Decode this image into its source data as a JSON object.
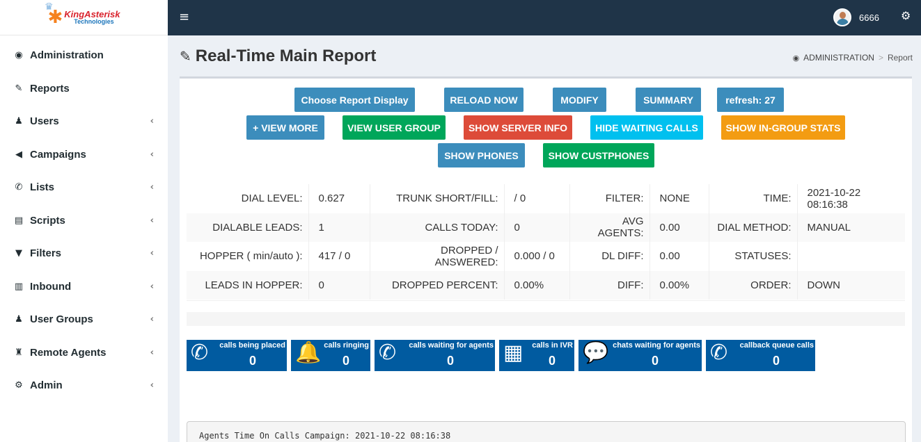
{
  "logo": {
    "name": "KingAsterisk",
    "sub": "Technologies"
  },
  "sidebar": {
    "items": [
      {
        "label": "Administration",
        "icon": "dashboard-icon",
        "glyph": "◉",
        "chevron": false
      },
      {
        "label": "Reports",
        "icon": "edit-icon",
        "glyph": "✎",
        "chevron": false
      },
      {
        "label": "Users",
        "icon": "user-icon",
        "glyph": "♟",
        "chevron": true
      },
      {
        "label": "Campaigns",
        "icon": "bullhorn-icon",
        "glyph": "◀",
        "chevron": true
      },
      {
        "label": "Lists",
        "icon": "phone-icon",
        "glyph": "✆",
        "chevron": true
      },
      {
        "label": "Scripts",
        "icon": "file-icon",
        "glyph": "▤",
        "chevron": true
      },
      {
        "label": "Filters",
        "icon": "filter-icon",
        "glyph": "▼",
        "chevron": true
      },
      {
        "label": "Inbound",
        "icon": "bar-chart-icon",
        "glyph": "▥",
        "chevron": true
      },
      {
        "label": "User Groups",
        "icon": "users-icon",
        "glyph": "♟",
        "chevron": true
      },
      {
        "label": "Remote Agents",
        "icon": "user-secret-icon",
        "glyph": "♜",
        "chevron": true
      },
      {
        "label": "Admin",
        "icon": "gear-icon",
        "glyph": "⚙",
        "chevron": true
      }
    ],
    "chevron_glyph": "‹"
  },
  "topbar": {
    "menu_glyph": "≡",
    "username": "6666",
    "gears_glyph": "⚙"
  },
  "page": {
    "title_icon": "✎",
    "title": "Real-Time Main Report",
    "breadcrumb": {
      "icon": "◉",
      "root": "ADMINISTRATION",
      "sep": ">",
      "current": "Report"
    }
  },
  "buttons": {
    "choose_report": "Choose Report Display",
    "reload": "RELOAD NOW",
    "modify": "MODIFY",
    "summary": "SUMMARY",
    "refresh": "refresh: 27",
    "view_more": "+ VIEW MORE",
    "view_user_group": "VIEW USER GROUP",
    "show_server_info": "SHOW SERVER INFO",
    "hide_waiting_calls": "HIDE WAITING CALLS",
    "show_ingroup_stats": "SHOW IN-GROUP STATS",
    "show_phones": "SHOW PHONES",
    "show_custphones": "SHOW CUSTPHONES"
  },
  "stats": {
    "rows": [
      [
        [
          "DIAL LEVEL:",
          "0.627"
        ],
        [
          "TRUNK SHORT/FILL:",
          "/ 0"
        ],
        [
          "FILTER:",
          "NONE"
        ],
        [
          "TIME:",
          "2021-10-22 08:16:38"
        ]
      ],
      [
        [
          "DIALABLE LEADS:",
          "1"
        ],
        [
          "CALLS TODAY:",
          "0"
        ],
        [
          "AVG AGENTS:",
          "0.00"
        ],
        [
          "DIAL METHOD:",
          "MANUAL"
        ]
      ],
      [
        [
          "HOPPER ( min/auto ):",
          "417 / 0"
        ],
        [
          "DROPPED / ANSWERED:",
          "0.000 / 0"
        ],
        [
          "DL DIFF:",
          "0.00"
        ],
        [
          "STATUSES:",
          ""
        ]
      ],
      [
        [
          "LEADS IN HOPPER:",
          "0"
        ],
        [
          "DROPPED PERCENT:",
          "0.00%"
        ],
        [
          "DIFF:",
          "0.00%"
        ],
        [
          "ORDER:",
          "DOWN"
        ]
      ]
    ]
  },
  "tiles": [
    {
      "label": "calls being placed",
      "value": "0",
      "glyph": "✆"
    },
    {
      "label": "calls ringing",
      "value": "0",
      "glyph": "🔔"
    },
    {
      "label": "calls waiting for agents",
      "value": "0",
      "glyph": "✆"
    },
    {
      "label": "calls in IVR",
      "value": "0",
      "glyph": "▦"
    },
    {
      "label": "chats waiting for agents",
      "value": "0",
      "glyph": "💬"
    },
    {
      "label": "callback queue calls",
      "value": "0",
      "glyph": "✆"
    }
  ],
  "agents_panel": {
    "text": "Agents Time On Calls Campaign: 2021-10-22 08:16:38"
  }
}
